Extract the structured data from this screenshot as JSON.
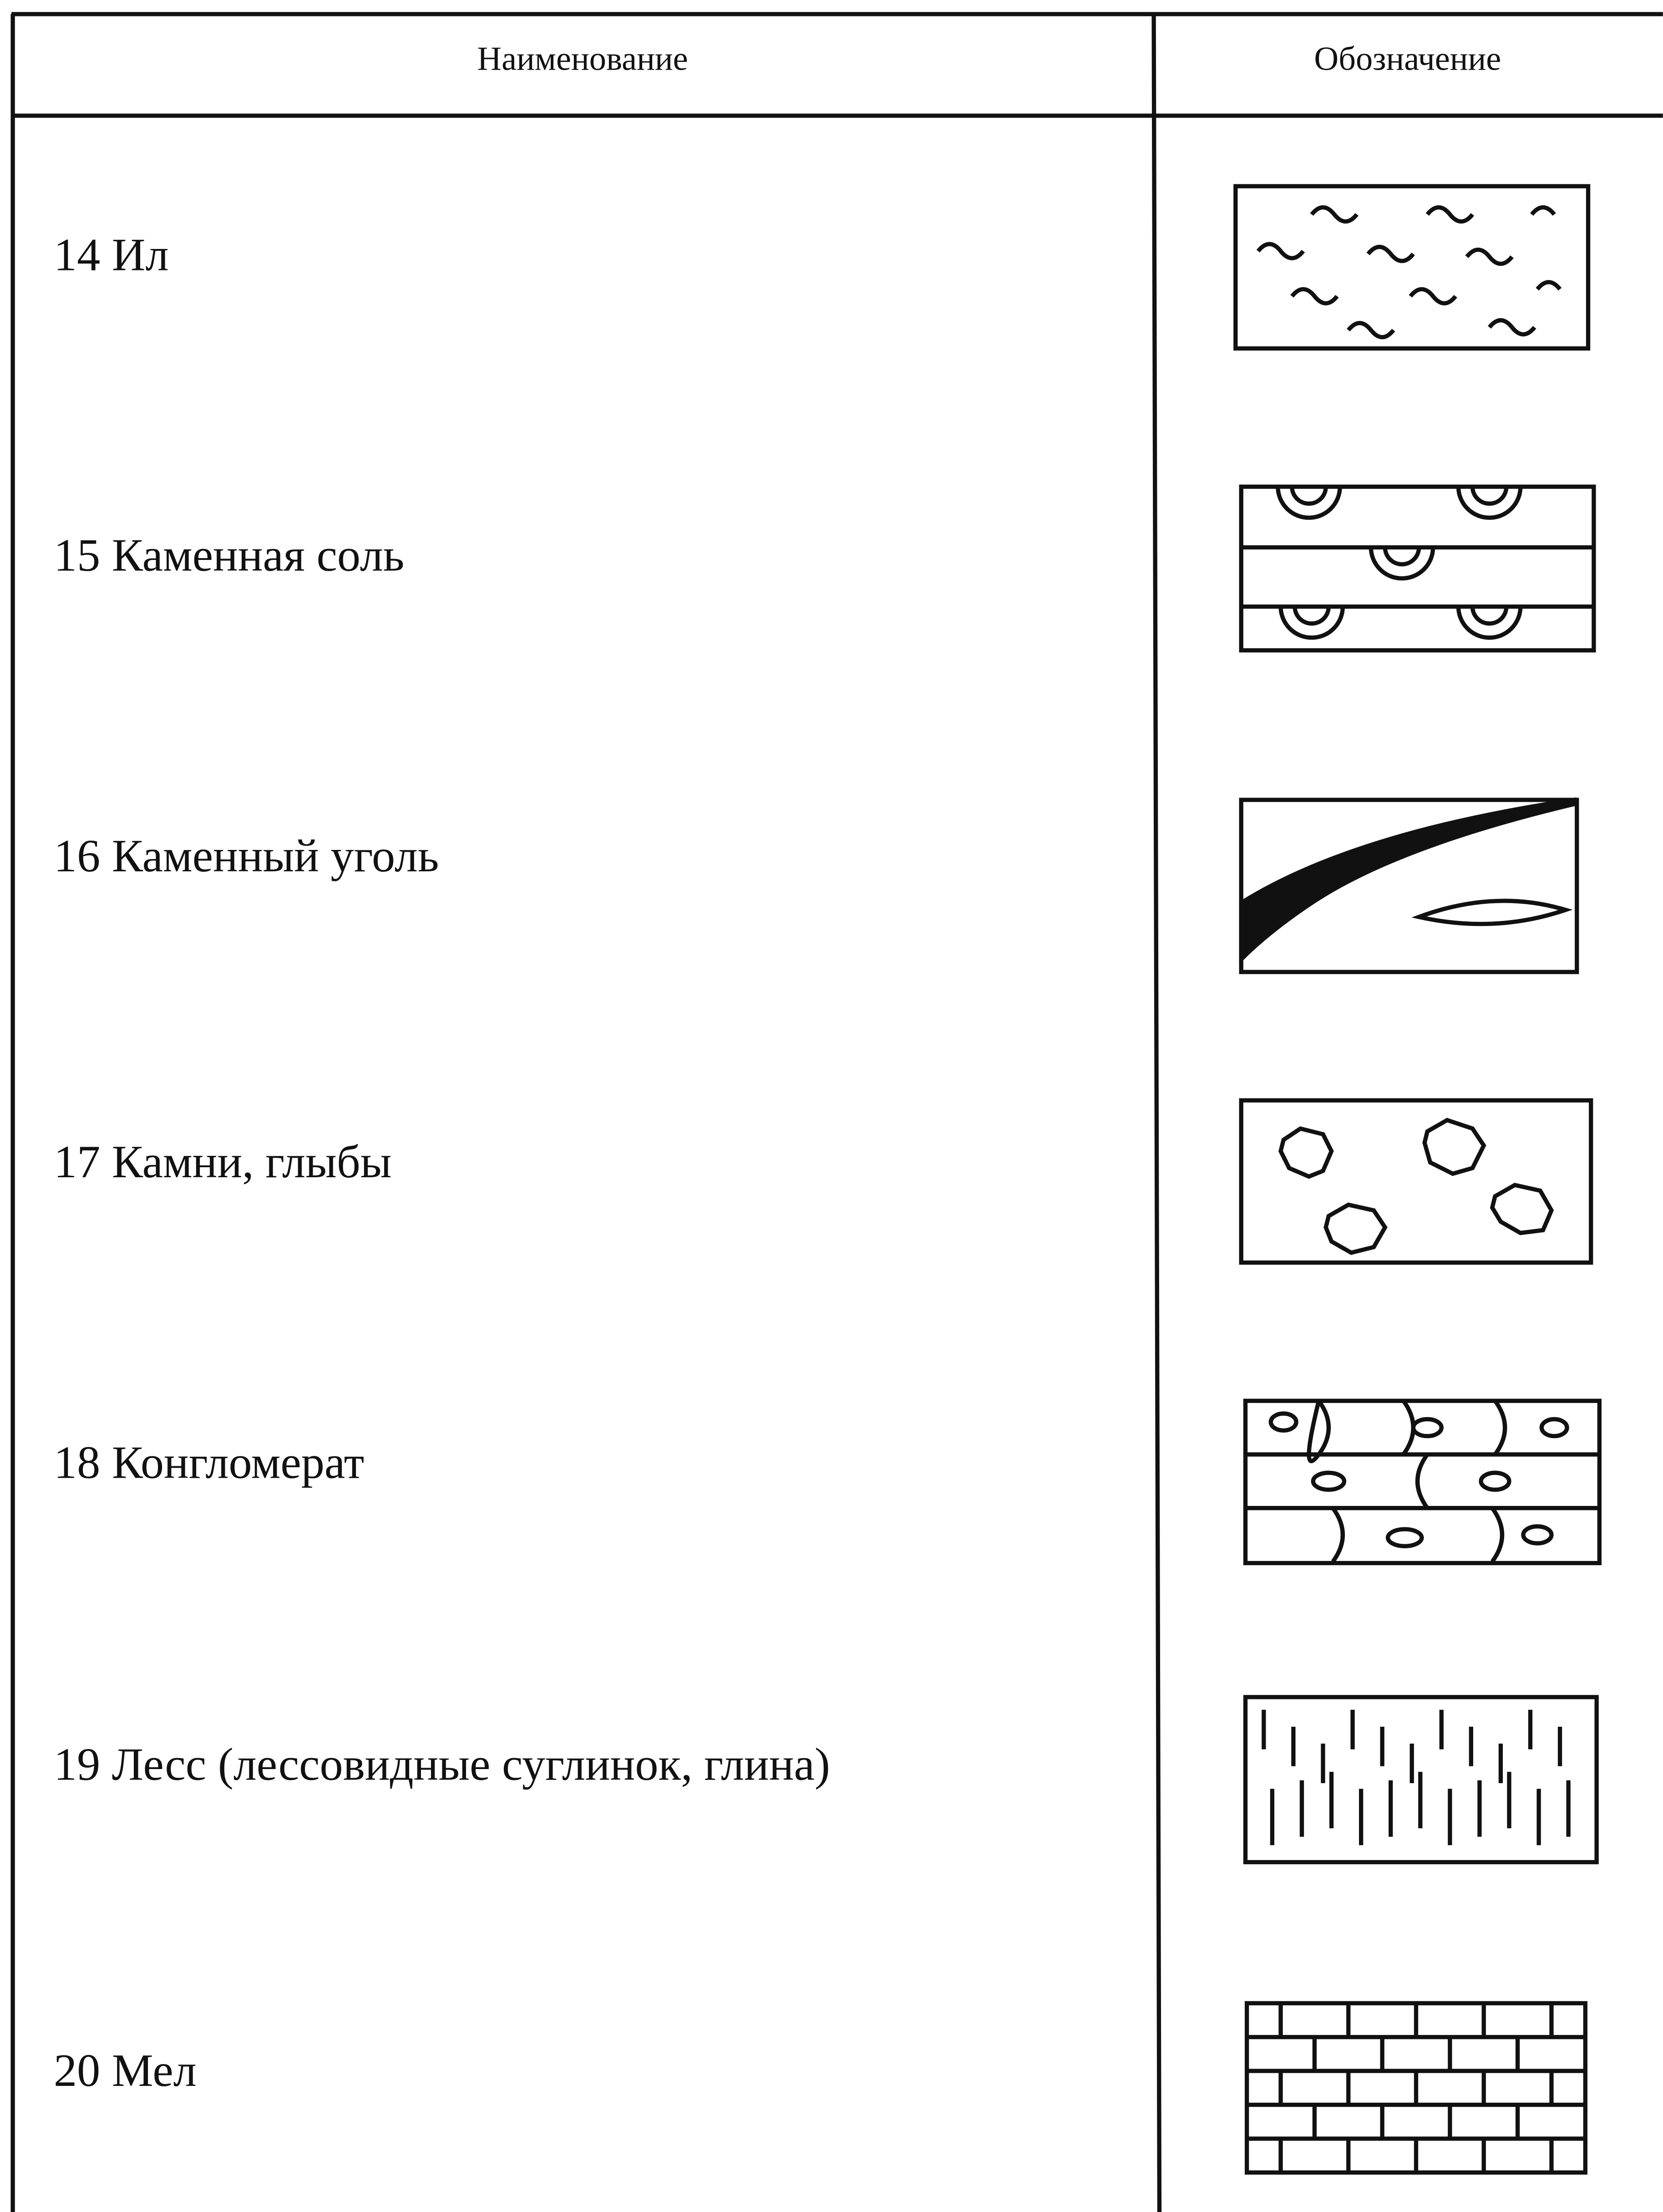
{
  "table": {
    "header": [
      "Наименование",
      "Обозначение"
    ],
    "rows": [
      "14 Ил",
      "15 Каменная соль",
      "16 Каменный уголь",
      "17 Камни, глыбы",
      "18 Конгломерат",
      "19 Лесс (лессовидные суглинок, глина)",
      "20 Мел"
    ]
  }
}
